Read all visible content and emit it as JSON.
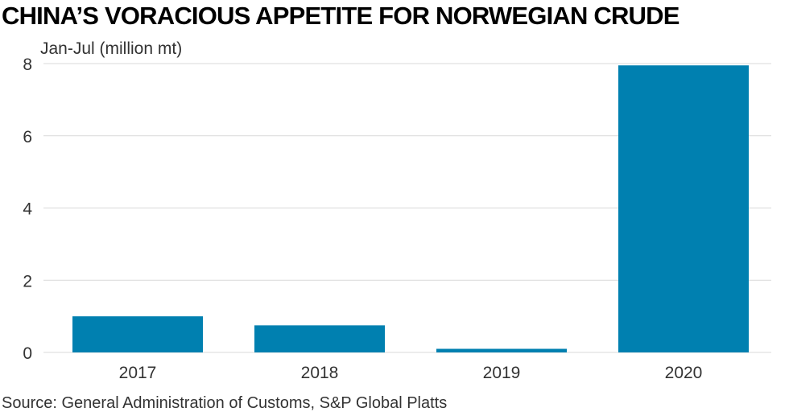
{
  "title": "CHINA’S VORACIOUS APPETITE FOR NORWEGIAN CRUDE",
  "source": "Source: General Administration of Customs, S&P Global Platts",
  "chart_data": {
    "type": "bar",
    "title": "CHINA’S VORACIOUS APPETITE FOR NORWEGIAN CRUDE",
    "ylabel": "Jan-Jul (million mt)",
    "xlabel": "",
    "categories": [
      "2017",
      "2018",
      "2019",
      "2020"
    ],
    "values": [
      1.0,
      0.75,
      0.1,
      7.95
    ],
    "ylim": [
      0,
      8
    ],
    "yticks": [
      0,
      2,
      4,
      6,
      8
    ],
    "grid": true,
    "bar_color": "#0080b0",
    "grid_color": "#d9d9d9"
  }
}
